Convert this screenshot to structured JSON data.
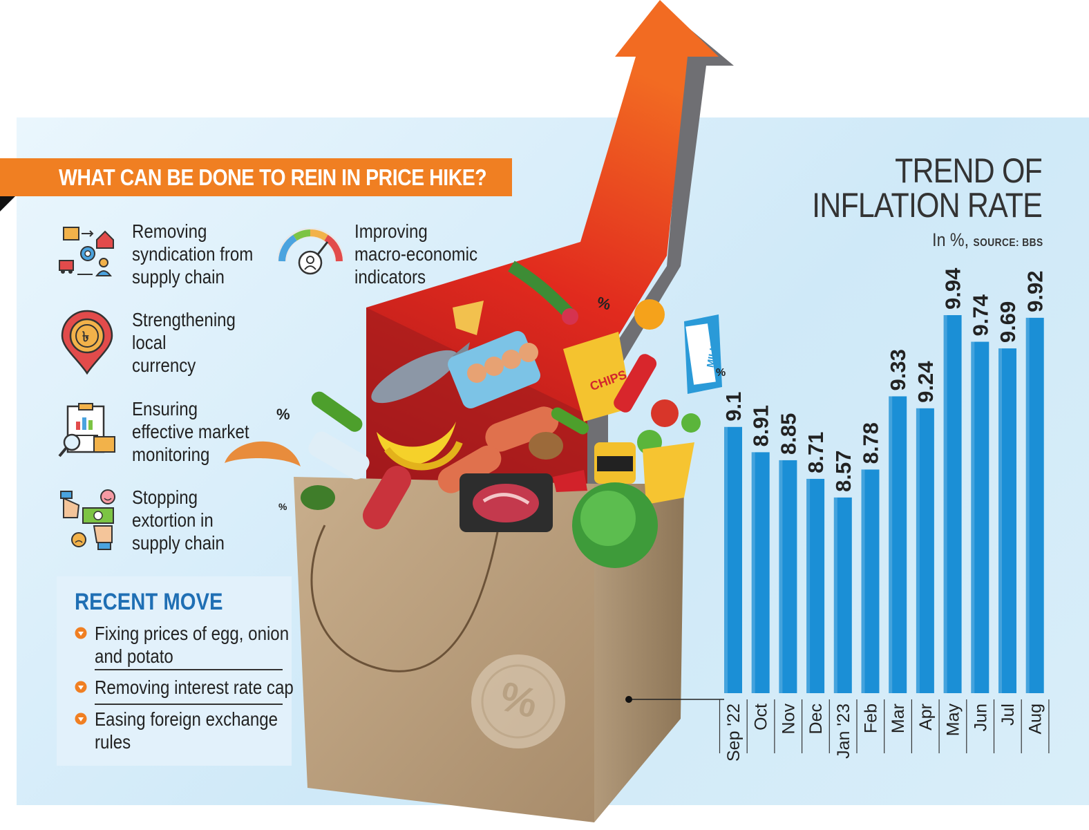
{
  "header": {
    "title": "WHAT CAN BE DONE TO REIN IN PRICE HIKE?"
  },
  "measures": [
    {
      "text": "Removing\nsyndication from\nsupply chain",
      "icon": "supply-chain-icon"
    },
    {
      "text": "Improving\nmacro-economic\nindicators",
      "icon": "gauge-icon"
    },
    {
      "text": "Strengthening\nlocal\ncurrency",
      "icon": "taka-coin-pin-icon"
    },
    {
      "text": "Ensuring\neffective market\nmonitoring",
      "icon": "clipboard-monitoring-icon"
    },
    {
      "text": "Stopping\nextortion in\nsupply chain",
      "icon": "hand-cash-icon"
    }
  ],
  "recent": {
    "title": "RECENT MOVE",
    "items": [
      "Fixing prices of egg, onion\nand potato",
      "Removing interest rate cap",
      "Easing foreign exchange\nrules"
    ]
  },
  "illustration": {
    "chips_label": "CHIPS",
    "milk_label": "MILK",
    "percent_symbol": "%"
  },
  "chart_title": "TREND OF\nINFLATION RATE",
  "chart_unit": "In %,",
  "chart_source": "SOURCE: BBS",
  "colors": {
    "banner": "#f07f22",
    "bar": "#1b8fd6",
    "arrow": "#e5231b",
    "recent_title": "#1f6fb4"
  },
  "chart_data": {
    "type": "bar",
    "title": "TREND OF INFLATION RATE",
    "ylabel": "In %",
    "categories": [
      "Sep '22",
      "Oct",
      "Nov",
      "Dec",
      "Jan '23",
      "Feb",
      "Mar",
      "Apr",
      "May",
      "Jun",
      "Jul",
      "Aug"
    ],
    "values": [
      9.1,
      8.91,
      8.85,
      8.71,
      8.57,
      8.78,
      9.33,
      9.24,
      9.94,
      9.74,
      9.69,
      9.92
    ],
    "value_labels": [
      "9.1",
      "8.91",
      "8.85",
      "8.71",
      "8.57",
      "8.78",
      "9.33",
      "9.24",
      "9.94",
      "9.74",
      "9.69",
      "9.92"
    ],
    "ylim": [
      7.1,
      9.94
    ],
    "grid": false,
    "legend": "none"
  }
}
